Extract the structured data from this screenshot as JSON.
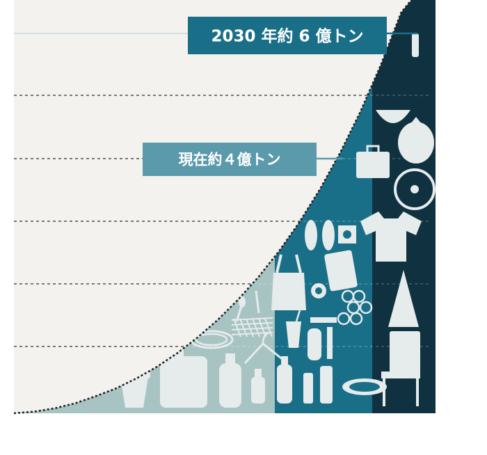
{
  "chart_data": {
    "type": "area",
    "title": "",
    "xlabel": "",
    "ylabel": "",
    "grid": true,
    "legend": "none",
    "colors": {
      "background": "#f3f2ef",
      "stage1": "#a7c4c2",
      "stage2": "#1a6f88",
      "stage3": "#0f3140",
      "silhouette": "#e6ebec",
      "callout_primary": "#1a6f88",
      "callout_secondary": "#5b9aaa",
      "curve": "#222222"
    },
    "icons": [
      "bucket-icon",
      "jug-icon",
      "detergent-bottle-icon",
      "spray-bottle-icon",
      "cutlery-icon",
      "hose-icon",
      "grid-tray-icon",
      "hanger-icon",
      "water-bottle-icon",
      "cup-icon",
      "bag-icon",
      "cushion-icon",
      "toothbrush-icon",
      "comb-icon",
      "tape-icon",
      "shampoo-icon",
      "slippers-icon",
      "cd-icon",
      "bowl-icon",
      "shirt-icon",
      "cone-icon",
      "chair-icon",
      "fan-icon",
      "suitcase-icon",
      "garbage-bag-icon",
      "plate-icon",
      "balls-icon"
    ],
    "series": [
      {
        "values": [
          {
            "x": 0,
            "y": 0
          },
          {
            "x": 0.05,
            "y": 0.004
          },
          {
            "x": 0.1,
            "y": 0.012
          },
          {
            "x": 0.15,
            "y": 0.024
          },
          {
            "x": 0.2,
            "y": 0.041
          },
          {
            "x": 0.25,
            "y": 0.06
          },
          {
            "x": 0.3,
            "y": 0.084
          },
          {
            "x": 0.35,
            "y": 0.112
          },
          {
            "x": 0.4,
            "y": 0.145
          },
          {
            "x": 0.45,
            "y": 0.183
          },
          {
            "x": 0.5,
            "y": 0.226
          },
          {
            "x": 0.55,
            "y": 0.275
          },
          {
            "x": 0.6,
            "y": 0.33
          },
          {
            "x": 0.65,
            "y": 0.392
          },
          {
            "x": 0.7,
            "y": 0.462
          },
          {
            "x": 0.75,
            "y": 0.541
          },
          {
            "x": 0.8,
            "y": 0.63
          },
          {
            "x": 0.85,
            "y": 0.73
          },
          {
            "x": 0.9,
            "y": 0.843
          },
          {
            "x": 0.95,
            "y": 0.97
          },
          {
            "x": 0.975,
            "y": 1
          }
        ]
      }
    ],
    "annotations": [
      {
        "id": "now",
        "label": "現在約４億トン"
      },
      {
        "id": "2030",
        "label": "2030 年約 6 億トン"
      }
    ]
  }
}
